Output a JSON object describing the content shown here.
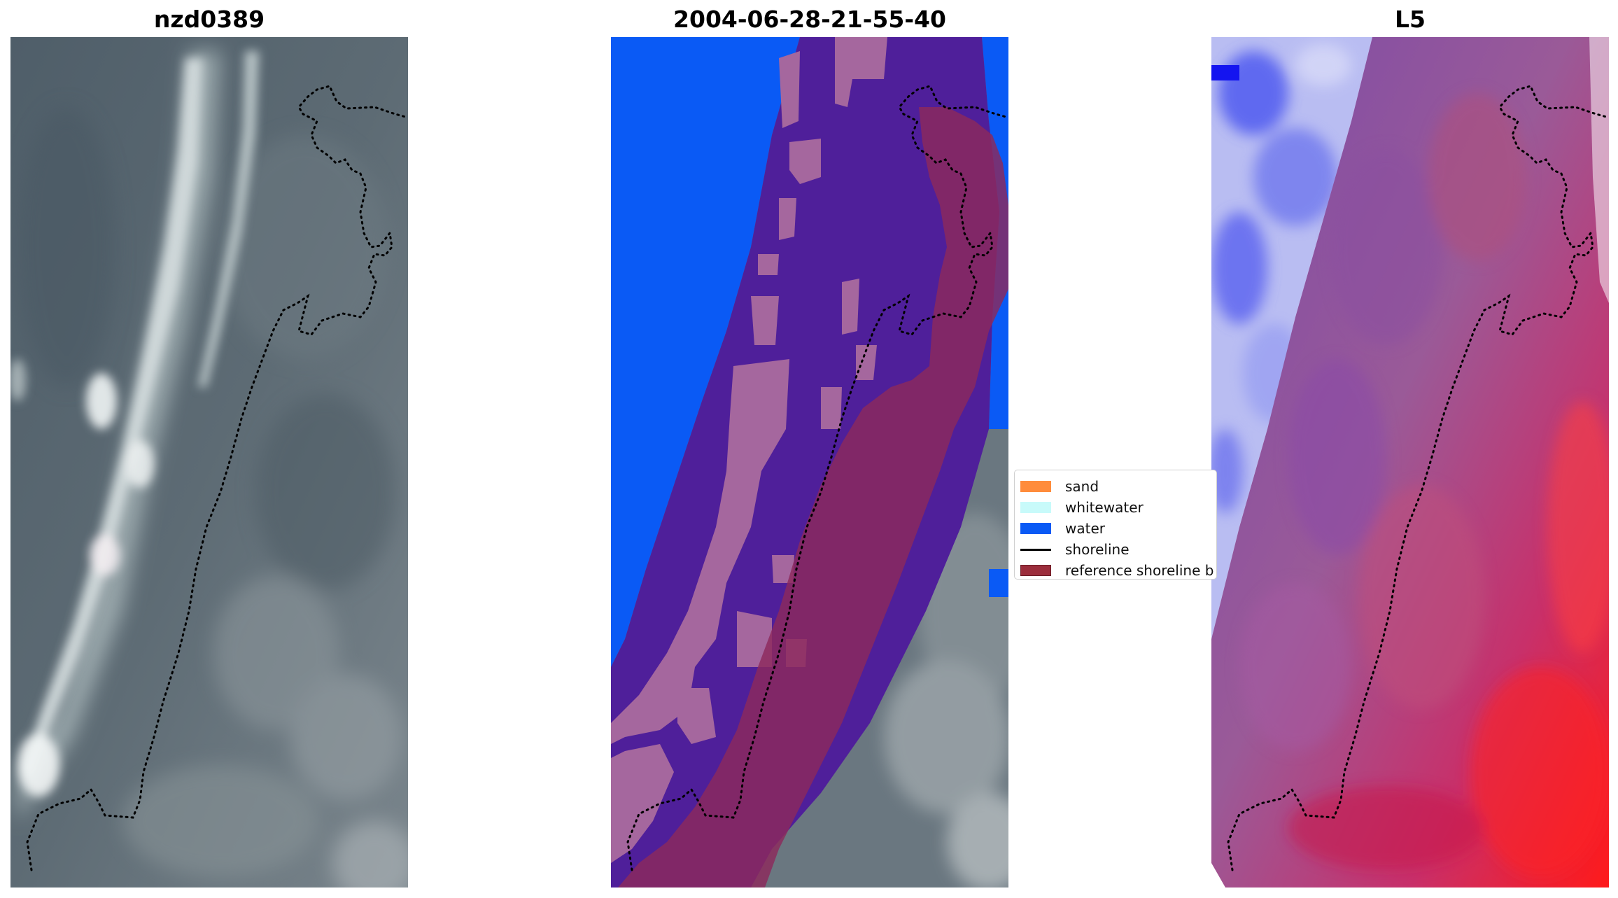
{
  "panels": [
    {
      "title": "nzd0389"
    },
    {
      "title": "2004-06-28-21-55-40"
    },
    {
      "title": "L5"
    }
  ],
  "legend": {
    "items": [
      {
        "label": "sand",
        "color": "#ff8c3c",
        "kind": "patch"
      },
      {
        "label": "whitewater",
        "color": "#c8fafa",
        "kind": "patch"
      },
      {
        "label": "water",
        "color": "#0a5af5",
        "kind": "patch"
      },
      {
        "label": "shoreline",
        "color": "#000000",
        "kind": "line"
      },
      {
        "label": "reference shoreline b",
        "color": "#9b2d3c",
        "kind": "patch"
      }
    ]
  },
  "colors": {
    "classified_land": "#4f1f9a",
    "classified_land_light": "#a5679e",
    "buffer_overlay": "#8c2a5c",
    "water": "#0a5af5",
    "grey_background": "#5d6c78",
    "index_low": "#2b2bff",
    "index_high": "#ff1414"
  }
}
